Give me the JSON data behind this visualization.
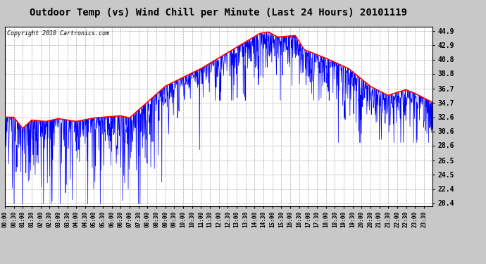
{
  "title": "Outdoor Temp (vs) Wind Chill per Minute (Last 24 Hours) 20101119",
  "copyright": "Copyright 2010 Cartronics.com",
  "yticks": [
    20.4,
    22.4,
    24.5,
    26.5,
    28.6,
    30.6,
    32.6,
    34.7,
    36.7,
    38.8,
    40.8,
    42.9,
    44.9
  ],
  "ylim": [
    20.0,
    45.5
  ],
  "background_color": "#c8c8c8",
  "plot_bg_color": "#ffffff",
  "grid_color": "#aaaaaa",
  "red_line_color": "#ff0000",
  "blue_line_color": "#0000ff",
  "title_fontsize": 10,
  "copyright_fontsize": 6,
  "xtick_fontsize": 5.5,
  "ytick_fontsize": 7
}
